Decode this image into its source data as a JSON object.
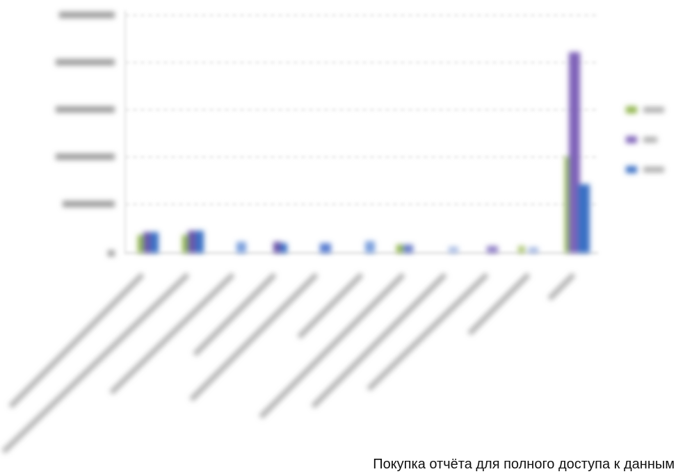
{
  "paywall": {
    "text": "Покупка отчёта для полного доступа к данным"
  }
}
